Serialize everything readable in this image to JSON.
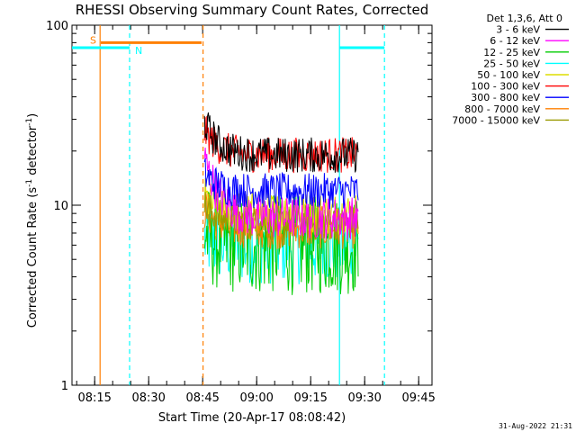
{
  "chart_data": {
    "type": "line",
    "title": "RHESSI Observing Summary Count Rates, Corrected",
    "xlabel": "Start Time (20-Apr-17 08:08:42)",
    "ylabel_main": "Corrected Count Rate (s",
    "ylabel_sup": "-1",
    "ylabel_mid": " detector",
    "ylabel_sup2": "-1",
    "ylabel_end": ")",
    "y_scale": "log",
    "ylim": [
      1,
      100
    ],
    "y_ticks": [
      {
        "value": 1,
        "label": "1"
      },
      {
        "value": 10,
        "label": "10"
      },
      {
        "value": 100,
        "label": "100"
      }
    ],
    "x_start_label": "08:08:42",
    "x_range_minutes": [
      0,
      100
    ],
    "x_ticks": [
      {
        "minute": 6.3,
        "label": "08:15"
      },
      {
        "minute": 21.3,
        "label": "08:30"
      },
      {
        "minute": 36.3,
        "label": "08:45"
      },
      {
        "minute": 51.3,
        "label": "09:00"
      },
      {
        "minute": 66.3,
        "label": "09:15"
      },
      {
        "minute": 81.3,
        "label": "09:30"
      },
      {
        "minute": 96.3,
        "label": "09:45"
      }
    ],
    "legend_title": "Det 1,3,6, Att 0",
    "legend_position": "right",
    "series": [
      {
        "name": "3 - 6 keV",
        "color": "#000000",
        "start": 29,
        "end": 19,
        "noise": 0.1
      },
      {
        "name": "6 - 12 keV",
        "color": "#ff00ff",
        "start": 18,
        "end": 8.5,
        "noise": 0.12
      },
      {
        "name": "12 - 25 keV",
        "color": "#00cc00",
        "start": 7,
        "end": 6.0,
        "noise": 0.28
      },
      {
        "name": "25 - 50 keV",
        "color": "#00ffff",
        "start": 6.5,
        "end": 6.0,
        "noise": 0.22
      },
      {
        "name": "50 - 100 keV",
        "color": "#dddd00",
        "start": 11,
        "end": 9.0,
        "noise": 0.12
      },
      {
        "name": "100 - 300 keV",
        "color": "#ff0000",
        "start": 26,
        "end": 19,
        "noise": 0.1
      },
      {
        "name": "300 - 800 keV",
        "color": "#0000ff",
        "start": 15,
        "end": 12,
        "noise": 0.1
      },
      {
        "name": "800 - 7000 keV",
        "color": "#ff7f00",
        "start": 9.5,
        "end": 7.5,
        "noise": 0.12
      },
      {
        "name": "7000 - 15000 keV",
        "color": "#999900",
        "start": 10,
        "end": 8.0,
        "noise": 0.1
      }
    ],
    "data_window_minutes": [
      36.8,
      79.5
    ],
    "saa_flag": {
      "label": "S",
      "color": "#ff7f00",
      "start": 8.0,
      "end": 36.0,
      "value": 80
    },
    "night_flag": {
      "label": "N",
      "color": "#00ffff",
      "start_segments": [
        [
          0,
          16.0
        ],
        [
          74.3,
          86.8
        ]
      ],
      "value": 75
    },
    "vlines": [
      {
        "minute": 7.8,
        "color": "#ff7f00",
        "dashed": false
      },
      {
        "minute": 16.0,
        "color": "#00ffff",
        "dashed": true
      },
      {
        "minute": 36.4,
        "color": "#ff7f00",
        "dashed": true
      },
      {
        "minute": 74.3,
        "color": "#00ffff",
        "dashed": false
      },
      {
        "minute": 86.8,
        "color": "#00ffff",
        "dashed": true
      }
    ],
    "footer_timestamp": "31-Aug-2022 21:31"
  }
}
